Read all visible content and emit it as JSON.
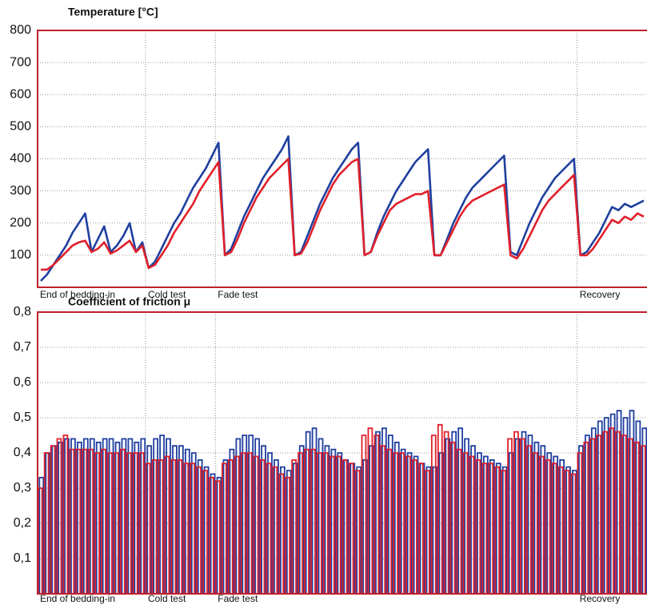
{
  "chart_data": [
    {
      "type": "line",
      "title": "Temperature [°C]",
      "categories": [
        "End of bedding-in",
        null,
        null,
        null,
        null,
        null,
        null,
        null,
        null,
        null,
        null,
        null,
        null,
        null,
        null,
        null,
        null,
        "Cold test",
        null,
        null,
        null,
        null,
        null,
        null,
        null,
        null,
        null,
        null,
        "Fade test",
        null,
        null,
        null,
        null,
        null,
        null,
        null,
        null,
        null,
        null,
        null,
        null,
        null,
        null,
        null,
        null,
        null,
        null,
        null,
        null,
        null,
        null,
        null,
        null,
        null,
        null,
        null,
        null,
        null,
        null,
        null,
        null,
        null,
        null,
        null,
        null,
        null,
        null,
        null,
        null,
        null,
        null,
        null,
        null,
        null,
        null,
        null,
        null,
        null,
        null,
        null,
        null,
        null,
        null,
        null,
        null,
        "Recovery",
        null,
        null,
        null,
        null,
        null,
        null,
        null,
        null,
        null,
        null
      ],
      "series": [
        {
          "color": "#1f3f9f",
          "values": [
            20,
            40,
            70,
            100,
            130,
            170,
            200,
            230,
            110,
            150,
            190,
            110,
            130,
            160,
            200,
            110,
            140,
            60,
            80,
            120,
            160,
            200,
            230,
            270,
            310,
            340,
            370,
            410,
            450,
            100,
            120,
            170,
            220,
            260,
            300,
            340,
            370,
            400,
            430,
            470,
            100,
            110,
            160,
            210,
            260,
            300,
            340,
            370,
            400,
            430,
            450,
            100,
            110,
            170,
            220,
            260,
            300,
            330,
            360,
            390,
            410,
            430,
            100,
            100,
            150,
            200,
            240,
            280,
            310,
            330,
            350,
            370,
            390,
            410,
            110,
            100,
            150,
            200,
            240,
            280,
            310,
            340,
            360,
            380,
            400,
            100,
            110,
            140,
            170,
            210,
            250,
            240,
            260,
            250,
            260,
            270
          ]
        },
        {
          "color": "#e0202a",
          "values": [
            55,
            55,
            70,
            90,
            110,
            130,
            140,
            145,
            110,
            120,
            140,
            105,
            115,
            130,
            145,
            110,
            130,
            60,
            70,
            100,
            130,
            170,
            200,
            230,
            260,
            300,
            330,
            360,
            390,
            100,
            110,
            150,
            200,
            240,
            280,
            310,
            340,
            360,
            380,
            400,
            100,
            105,
            140,
            190,
            240,
            280,
            320,
            350,
            370,
            390,
            400,
            100,
            110,
            160,
            200,
            240,
            260,
            270,
            280,
            290,
            290,
            300,
            100,
            100,
            140,
            180,
            220,
            250,
            270,
            280,
            290,
            300,
            310,
            320,
            100,
            90,
            120,
            160,
            200,
            240,
            270,
            290,
            310,
            330,
            350,
            100,
            100,
            120,
            150,
            180,
            210,
            200,
            220,
            210,
            230,
            220
          ]
        }
      ],
      "ylim": [
        0,
        800
      ],
      "yticks": [
        100,
        200,
        300,
        400,
        500,
        600,
        700,
        800
      ],
      "grid": true
    },
    {
      "type": "bar",
      "title": "Coefficient of friction μ",
      "categories": [
        "End of bedding-in",
        null,
        null,
        null,
        null,
        null,
        null,
        null,
        null,
        null,
        null,
        null,
        null,
        null,
        null,
        null,
        null,
        "Cold test",
        null,
        null,
        null,
        null,
        null,
        null,
        null,
        null,
        null,
        null,
        "Fade test",
        null,
        null,
        null,
        null,
        null,
        null,
        null,
        null,
        null,
        null,
        null,
        null,
        null,
        null,
        null,
        null,
        null,
        null,
        null,
        null,
        null,
        null,
        null,
        null,
        null,
        null,
        null,
        null,
        null,
        null,
        null,
        null,
        null,
        null,
        null,
        null,
        null,
        null,
        null,
        null,
        null,
        null,
        null,
        null,
        null,
        null,
        null,
        null,
        null,
        null,
        null,
        null,
        null,
        null,
        null,
        null,
        "Recovery",
        null,
        null,
        null,
        null,
        null,
        null,
        null,
        null,
        null,
        null
      ],
      "series": [
        {
          "color": "#1f3f9f",
          "values": [
            0.33,
            0.4,
            0.42,
            0.43,
            0.44,
            0.44,
            0.43,
            0.44,
            0.44,
            0.43,
            0.44,
            0.44,
            0.43,
            0.44,
            0.44,
            0.43,
            0.44,
            0.42,
            0.44,
            0.45,
            0.44,
            0.42,
            0.42,
            0.41,
            0.4,
            0.38,
            0.36,
            0.34,
            0.33,
            0.38,
            0.41,
            0.44,
            0.45,
            0.45,
            0.44,
            0.42,
            0.4,
            0.38,
            0.36,
            0.35,
            0.37,
            0.42,
            0.46,
            0.47,
            0.44,
            0.42,
            0.41,
            0.4,
            0.38,
            0.37,
            0.36,
            0.38,
            0.42,
            0.46,
            0.47,
            0.45,
            0.43,
            0.41,
            0.4,
            0.39,
            0.37,
            0.36,
            0.36,
            0.4,
            0.44,
            0.46,
            0.47,
            0.44,
            0.42,
            0.4,
            0.39,
            0.38,
            0.37,
            0.36,
            0.4,
            0.44,
            0.46,
            0.45,
            0.43,
            0.42,
            0.4,
            0.39,
            0.38,
            0.36,
            0.35,
            0.42,
            0.45,
            0.47,
            0.49,
            0.5,
            0.51,
            0.52,
            0.5,
            0.52,
            0.49,
            0.47
          ]
        },
        {
          "color": "#e0202a",
          "values": [
            0.3,
            0.4,
            0.42,
            0.44,
            0.45,
            0.41,
            0.41,
            0.41,
            0.41,
            0.4,
            0.41,
            0.4,
            0.4,
            0.41,
            0.4,
            0.4,
            0.4,
            0.37,
            0.38,
            0.38,
            0.39,
            0.38,
            0.38,
            0.37,
            0.37,
            0.36,
            0.35,
            0.33,
            0.32,
            0.37,
            0.38,
            0.39,
            0.4,
            0.4,
            0.39,
            0.38,
            0.37,
            0.36,
            0.34,
            0.33,
            0.38,
            0.4,
            0.41,
            0.41,
            0.4,
            0.4,
            0.39,
            0.39,
            0.38,
            0.37,
            0.35,
            0.45,
            0.47,
            0.45,
            0.42,
            0.41,
            0.4,
            0.4,
            0.39,
            0.38,
            0.37,
            0.35,
            0.45,
            0.48,
            0.46,
            0.43,
            0.41,
            0.4,
            0.39,
            0.38,
            0.37,
            0.37,
            0.36,
            0.35,
            0.44,
            0.46,
            0.44,
            0.42,
            0.4,
            0.39,
            0.38,
            0.37,
            0.36,
            0.35,
            0.34,
            0.4,
            0.43,
            0.44,
            0.45,
            0.46,
            0.47,
            0.46,
            0.45,
            0.44,
            0.43,
            0.42
          ]
        }
      ],
      "ylim": [
        0,
        0.8
      ],
      "yticks": [
        {
          "value": 0.1,
          "label": "0,1"
        },
        {
          "value": 0.2,
          "label": "0,2"
        },
        {
          "value": 0.3,
          "label": "0,3"
        },
        {
          "value": 0.4,
          "label": "0,4"
        },
        {
          "value": 0.5,
          "label": "0,5"
        },
        {
          "value": 0.6,
          "label": "0,6"
        },
        {
          "value": 0.7,
          "label": "0,7"
        },
        {
          "value": 0.8,
          "label": "0,8"
        }
      ],
      "grid": true
    }
  ]
}
